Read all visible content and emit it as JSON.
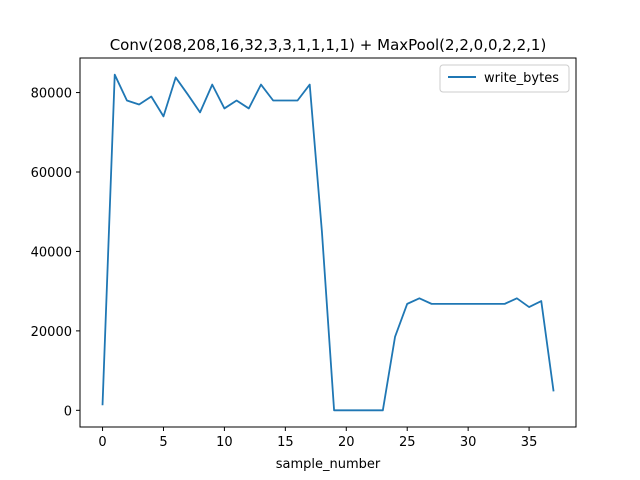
{
  "chart_data": {
    "type": "line",
    "title": "Conv(208,208,16,32,3,3,1,1,1,1) + MaxPool(2,2,0,0,2,2,1)",
    "xlabel": "sample_number",
    "ylabel": "",
    "xlim": [
      -1.85,
      38.85
    ],
    "ylim": [
      -4200,
      88700
    ],
    "xticks": [
      0,
      5,
      10,
      15,
      20,
      25,
      30,
      35
    ],
    "yticks": [
      0,
      20000,
      40000,
      60000,
      80000
    ],
    "grid": false,
    "legend_position": "upper right",
    "series": [
      {
        "name": "write_bytes",
        "color": "#1f77b4",
        "x": [
          0,
          1,
          2,
          3,
          4,
          5,
          6,
          7,
          8,
          9,
          10,
          11,
          12,
          13,
          14,
          15,
          16,
          17,
          18,
          19,
          20,
          21,
          22,
          23,
          24,
          25,
          26,
          27,
          28,
          29,
          30,
          31,
          32,
          33,
          34,
          35,
          36,
          37
        ],
        "y": [
          1500,
          84500,
          78000,
          77000,
          79000,
          74000,
          83800,
          79500,
          75000,
          82000,
          76000,
          78000,
          76000,
          82000,
          78000,
          78000,
          78000,
          82000,
          45000,
          0,
          0,
          0,
          0,
          0,
          18500,
          26800,
          28200,
          26800,
          26800,
          26800,
          26800,
          26800,
          26800,
          26800,
          28200,
          26000,
          27500,
          5000
        ]
      }
    ]
  }
}
